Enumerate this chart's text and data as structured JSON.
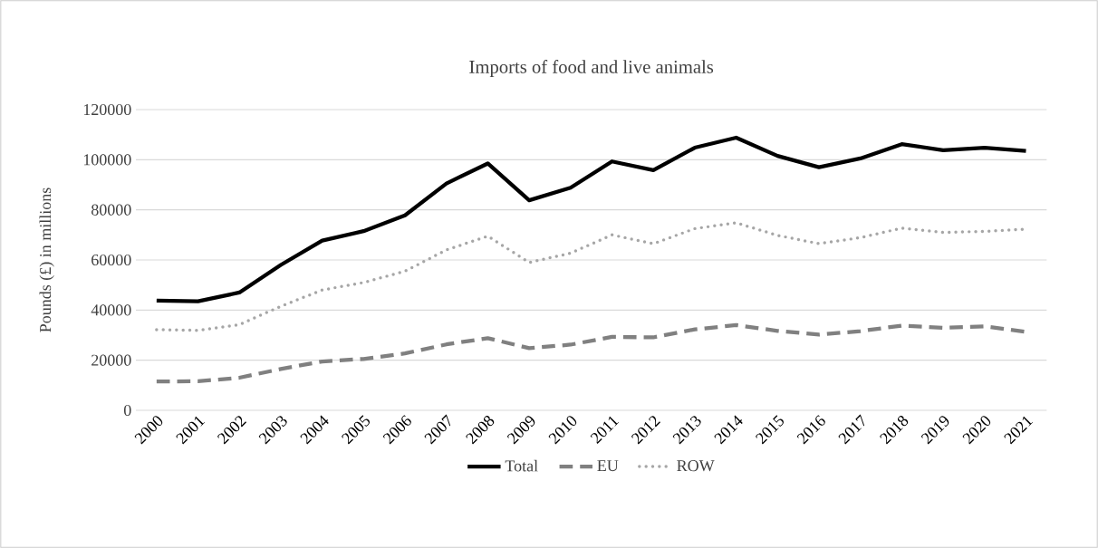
{
  "chart_data": {
    "type": "line",
    "title": "Imports of food and live animals",
    "ylabel": "Pounds (£) in millions",
    "categories": [
      "2000",
      "2001",
      "2002",
      "2003",
      "2004",
      "2005",
      "2006",
      "2007",
      "2008",
      "2009",
      "2010",
      "2011",
      "2012",
      "2013",
      "2014",
      "2015",
      "2016",
      "2017",
      "2018",
      "2019",
      "2020",
      "2021"
    ],
    "series": [
      {
        "name": "Total",
        "color": "#000000",
        "line_style": "solid",
        "values": [
          43800,
          43500,
          47000,
          58000,
          67700,
          71500,
          77800,
          90500,
          98500,
          83800,
          88800,
          99300,
          95800,
          104800,
          108800,
          101500,
          97000,
          100500,
          106200,
          103800,
          104800,
          103500
        ]
      },
      {
        "name": "EU",
        "color": "#808080",
        "line_style": "dashed",
        "values": [
          11500,
          11600,
          13000,
          16500,
          19500,
          20500,
          22700,
          26300,
          28800,
          24800,
          26200,
          29300,
          29100,
          32300,
          34000,
          31700,
          30200,
          31600,
          33800,
          32900,
          33500,
          31300
        ]
      },
      {
        "name": "ROW",
        "color": "#a6a6a6",
        "line_style": "dotted",
        "values": [
          32200,
          31900,
          34200,
          41500,
          48000,
          51000,
          55500,
          64000,
          69500,
          59000,
          62700,
          70000,
          66500,
          72500,
          74800,
          69800,
          66500,
          68900,
          72700,
          71000,
          71400,
          72300
        ]
      }
    ],
    "ylim": [
      0,
      120000
    ],
    "yticks": [
      0,
      20000,
      40000,
      60000,
      80000,
      100000,
      120000
    ],
    "grid": "y",
    "legend": "bottom",
    "marker": "none"
  }
}
